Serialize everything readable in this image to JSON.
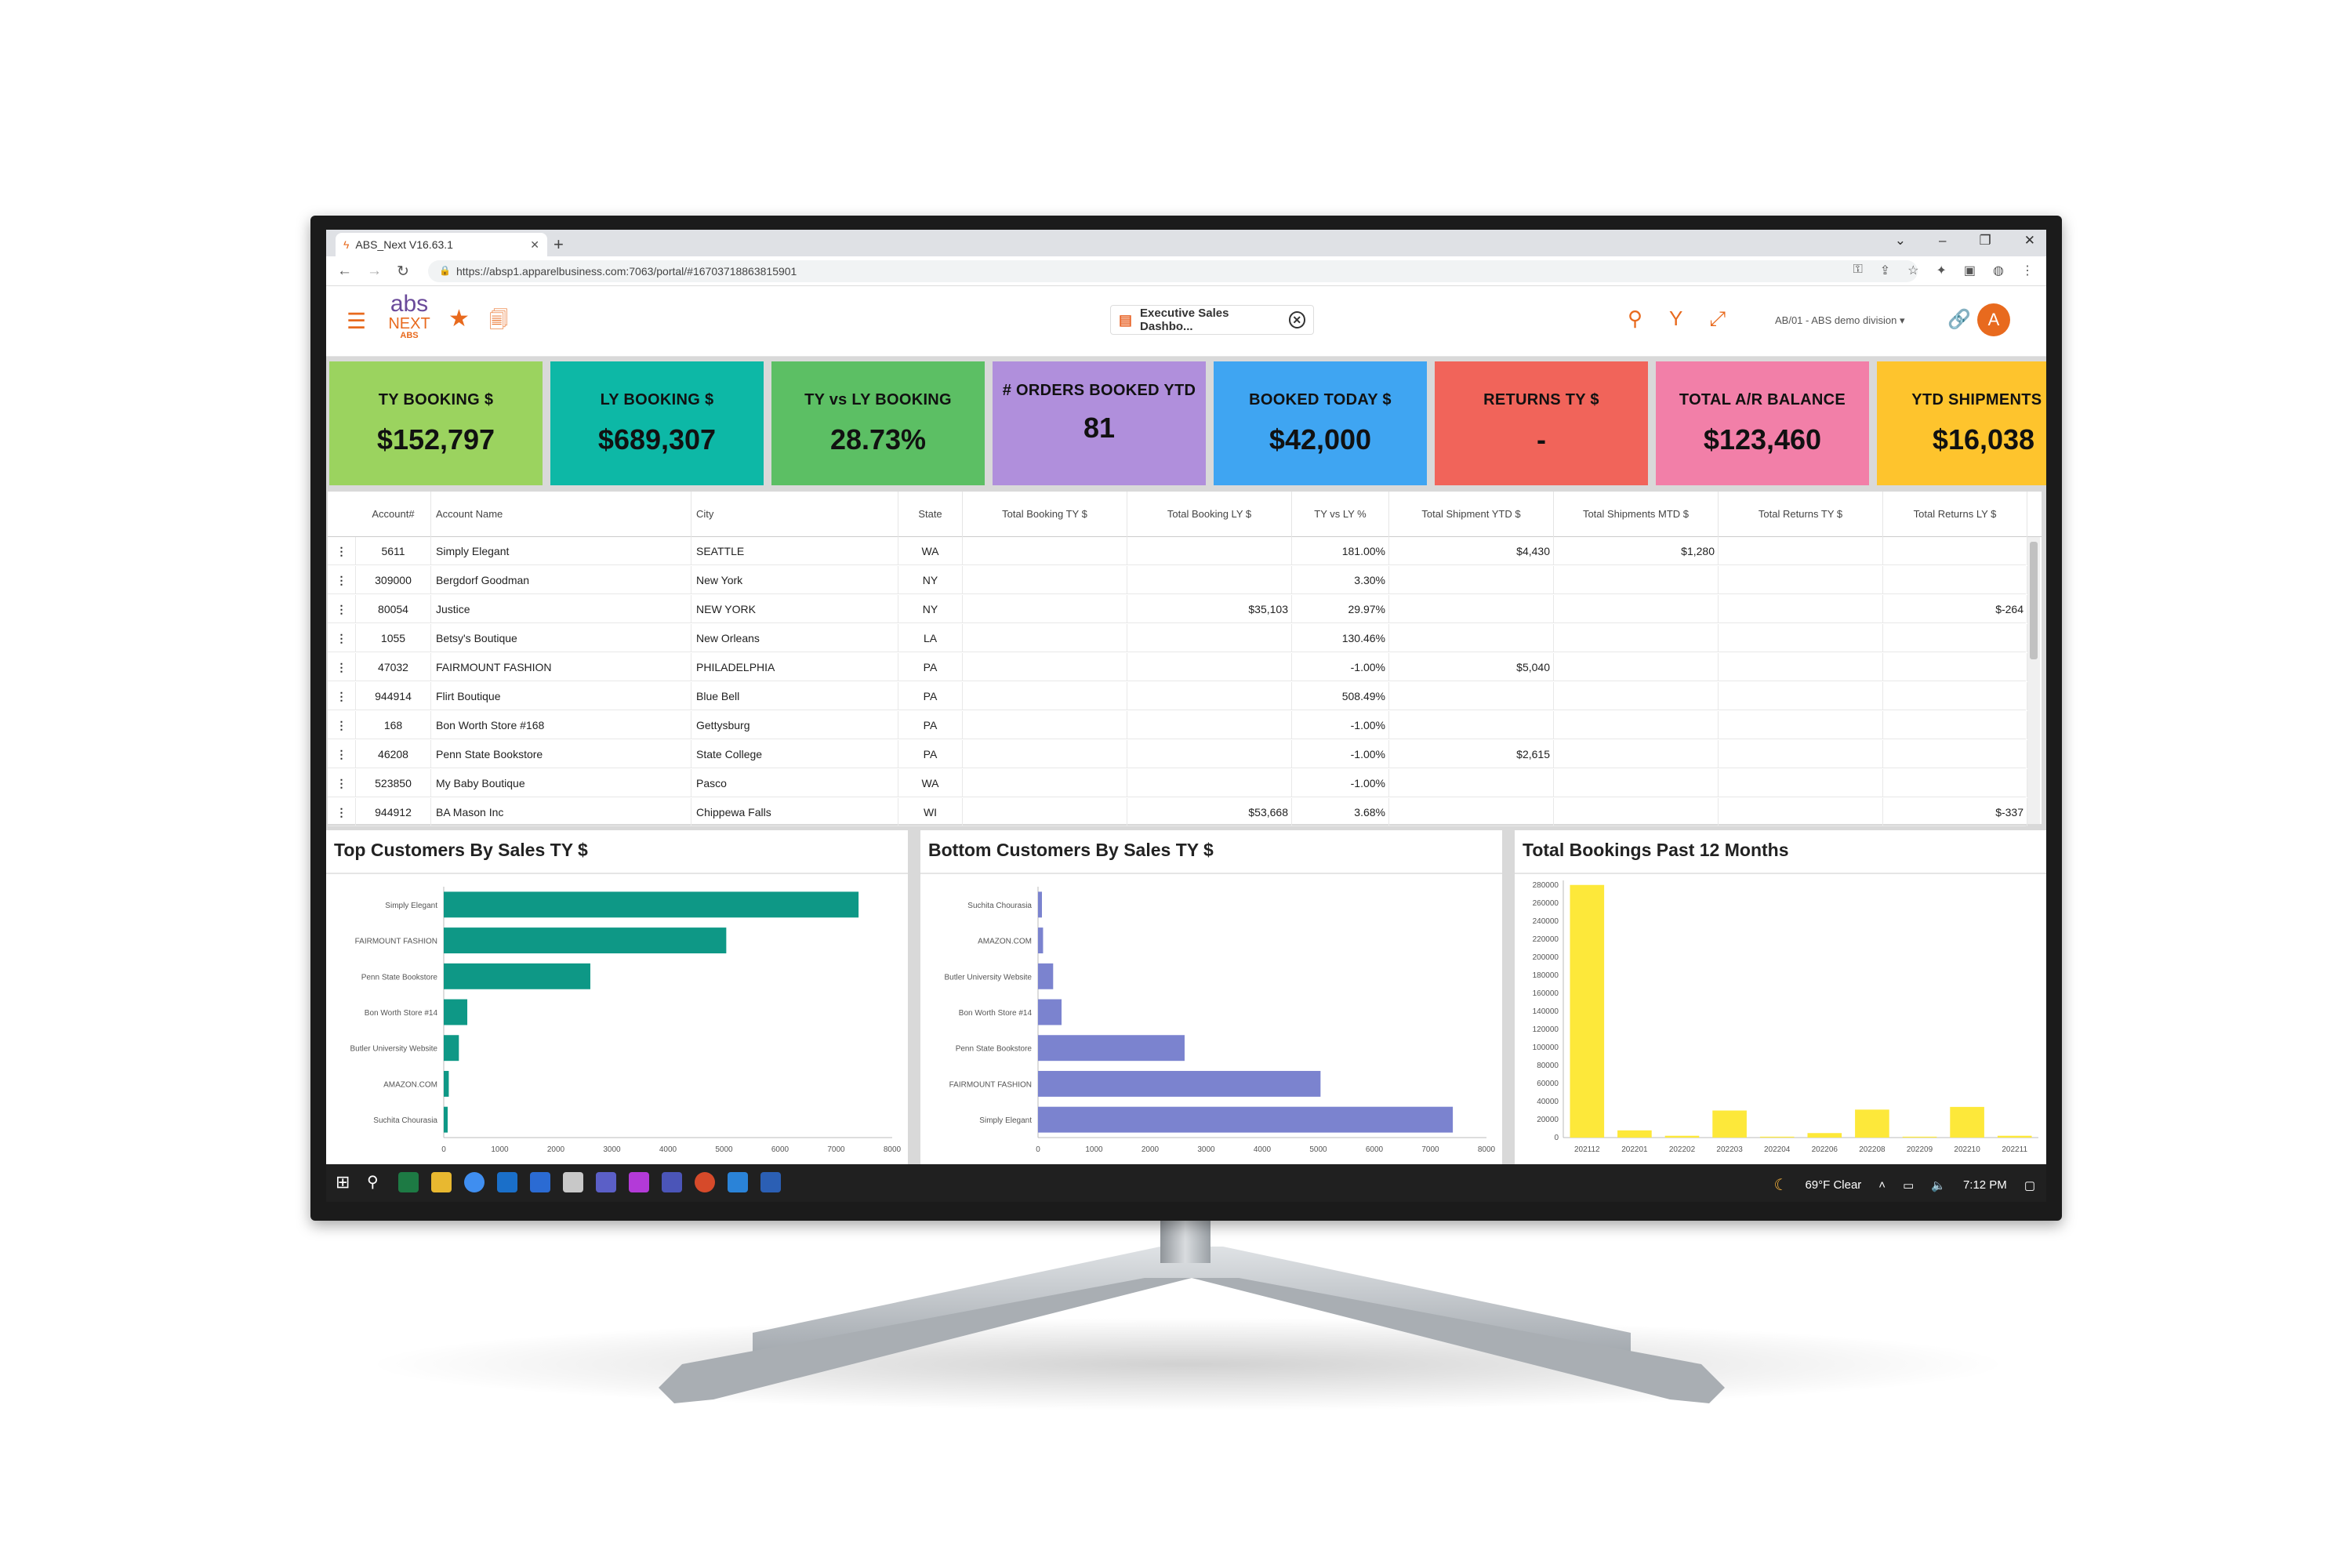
{
  "browser": {
    "tab_title": "ABS_Next V16.63.1",
    "tab_close": "✕",
    "new_tab": "+",
    "url": "https://absp1.apparelbusiness.com:7063/portal/#16703718863815901"
  },
  "header": {
    "logo_top": "abs",
    "logo_mid": "NEXT",
    "logo_bottom": "ABS",
    "open_tab_label": "Executive Sales Dashbo...",
    "division": "AB/01 - ABS demo division",
    "avatar_letter": "A",
    "accent_color": "#e86a1e"
  },
  "kpis": [
    {
      "label": "TY BOOKING $",
      "value": "$152,797",
      "color": "#9bd35f"
    },
    {
      "label": "LY BOOKING $",
      "value": "$689,307",
      "color": "#0db8a6"
    },
    {
      "label": "TY vs LY BOOKING",
      "value": "28.73%",
      "color": "#5cbf64"
    },
    {
      "label": "# ORDERS BOOKED YTD",
      "value": "81",
      "color": "#b08fdc"
    },
    {
      "label": "BOOKED TODAY $",
      "value": "$42,000",
      "color": "#3fa5f2"
    },
    {
      "label": "RETURNS TY $",
      "value": "-",
      "color": "#f1645a"
    },
    {
      "label": "TOTAL A/R BALANCE",
      "value": "$123,460",
      "color": "#f27fa8"
    },
    {
      "label": "YTD SHIPMENTS $",
      "value": "$16,038",
      "color": "#fec42d"
    }
  ],
  "table": {
    "columns": [
      "Account#",
      "Account Name",
      "City",
      "State",
      "Total Booking TY $",
      "Total Booking LY $",
      "TY vs LY %",
      "Total Shipment YTD $",
      "Total Shipments MTD $",
      "Total Returns TY $",
      "Total Returns LY $"
    ],
    "rows": [
      [
        "5611",
        "Simply Elegant",
        "SEATTLE",
        "WA",
        "",
        "",
        "181.00%",
        "$4,430",
        "$1,280",
        "",
        ""
      ],
      [
        "309000",
        "Bergdorf Goodman",
        "New York",
        "NY",
        "",
        "",
        "3.30%",
        "",
        "",
        "",
        ""
      ],
      [
        "80054",
        "Justice",
        "NEW YORK",
        "NY",
        "",
        "$35,103",
        "29.97%",
        "",
        "",
        "",
        "$-264"
      ],
      [
        "1055",
        "Betsy's Boutique",
        "New Orleans",
        "LA",
        "",
        "",
        "130.46%",
        "",
        "",
        "",
        ""
      ],
      [
        "47032",
        "FAIRMOUNT FASHION",
        "PHILADELPHIA",
        "PA",
        "",
        "",
        "-1.00%",
        "$5,040",
        "",
        "",
        ""
      ],
      [
        "944914",
        "Flirt Boutique",
        "Blue Bell",
        "PA",
        "",
        "",
        "508.49%",
        "",
        "",
        "",
        ""
      ],
      [
        "168",
        "Bon Worth Store #168",
        "Gettysburg",
        "PA",
        "",
        "",
        "-1.00%",
        "",
        "",
        "",
        ""
      ],
      [
        "46208",
        "Penn State Bookstore",
        "State College",
        "PA",
        "",
        "",
        "-1.00%",
        "$2,615",
        "",
        "",
        ""
      ],
      [
        "523850",
        "My Baby Boutique",
        "Pasco",
        "WA",
        "",
        "",
        "-1.00%",
        "",
        "",
        "",
        ""
      ],
      [
        "944912",
        "BA Mason Inc",
        "Chippewa Falls",
        "WI",
        "",
        "$53,668",
        "3.68%",
        "",
        "",
        "",
        "$-337"
      ]
    ]
  },
  "chart_data": [
    {
      "type": "bar",
      "orientation": "horizontal",
      "title": "Top Customers By Sales TY $",
      "categories": [
        "Simply Elegant",
        "FAIRMOUNT FASHION",
        "Penn State Bookstore",
        "Bon Worth Store #14",
        "Butler University Website",
        "AMAZON.COM",
        "Suchita Chourasia"
      ],
      "values": [
        7400,
        5040,
        2615,
        420,
        270,
        90,
        70
      ],
      "xticks": [
        0,
        1000,
        2000,
        3000,
        4000,
        5000,
        6000,
        7000,
        8000
      ],
      "xlim": [
        0,
        8000
      ],
      "color": "#0e9886"
    },
    {
      "type": "bar",
      "orientation": "horizontal",
      "title": "Bottom Customers By Sales TY $",
      "categories": [
        "Suchita Chourasia",
        "AMAZON.COM",
        "Butler University Website",
        "Bon Worth Store #14",
        "Penn State Bookstore",
        "FAIRMOUNT FASHION",
        "Simply Elegant"
      ],
      "values": [
        70,
        90,
        270,
        420,
        2615,
        5040,
        7400
      ],
      "xticks": [
        0,
        1000,
        2000,
        3000,
        4000,
        5000,
        6000,
        7000,
        8000
      ],
      "xlim": [
        0,
        8000
      ],
      "color": "#7b83cf"
    },
    {
      "type": "bar",
      "orientation": "vertical",
      "title": "Total Bookings Past 12 Months",
      "categories": [
        "202112",
        "202201",
        "202202",
        "202203",
        "202204",
        "202206",
        "202208",
        "202209",
        "202210",
        "202211"
      ],
      "values": [
        280000,
        8000,
        2000,
        30000,
        1000,
        5000,
        31000,
        1000,
        34000,
        2000
      ],
      "yticks": [
        0,
        20000,
        40000,
        60000,
        80000,
        100000,
        120000,
        140000,
        160000,
        180000,
        200000,
        220000,
        240000,
        260000,
        280000
      ],
      "ylim": [
        0,
        285000
      ],
      "color": "#fde83a"
    }
  ],
  "taskbar": {
    "weather": "69°F  Clear",
    "time": "7:12 PM"
  }
}
